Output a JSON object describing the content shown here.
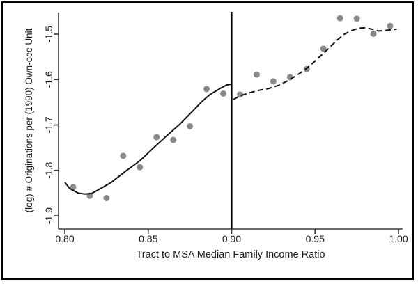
{
  "figure": {
    "background": "#ffffff",
    "border_color": "#000000"
  },
  "chart_data": {
    "type": "scatter",
    "title": "",
    "xlabel": "Tract to MSA Median Family Income Ratio",
    "ylabel": "(log) # Originations per (1990) Own-occ Unit",
    "xlim": [
      0.796,
      1.003
    ],
    "ylim": [
      -1.93,
      -1.45
    ],
    "x_ticks": [
      0.8,
      0.85,
      0.9,
      0.95,
      1.0
    ],
    "x_tick_labels": [
      "0.80",
      "0.85",
      "0.90",
      "0.95",
      "1.00"
    ],
    "y_ticks": [
      -1.5,
      -1.6,
      -1.7,
      -1.8,
      -1.9
    ],
    "y_tick_labels": [
      "-1.5",
      "-1.6",
      "-1.7",
      "-1.8",
      "-1.9"
    ],
    "grid": false,
    "legend": "none",
    "cutoff_x": 0.9,
    "colors": {
      "dot": "#8a8a8a",
      "fit_line": "#111111",
      "cutoff_line": "#000000",
      "axis": "#3a3a3a"
    },
    "series": [
      {
        "name": "binned-scatter",
        "type": "scatter",
        "color": "#8a8a8a",
        "points": [
          [
            0.805,
            -1.837
          ],
          [
            0.815,
            -1.856
          ],
          [
            0.825,
            -1.861
          ],
          [
            0.835,
            -1.768
          ],
          [
            0.845,
            -1.793
          ],
          [
            0.855,
            -1.727
          ],
          [
            0.865,
            -1.733
          ],
          [
            0.875,
            -1.703
          ],
          [
            0.885,
            -1.621
          ],
          [
            0.895,
            -1.631
          ],
          [
            0.905,
            -1.633
          ],
          [
            0.915,
            -1.589
          ],
          [
            0.925,
            -1.604
          ],
          [
            0.935,
            -1.595
          ],
          [
            0.945,
            -1.577
          ],
          [
            0.955,
            -1.532
          ],
          [
            0.965,
            -1.465
          ],
          [
            0.975,
            -1.466
          ],
          [
            0.985,
            -1.499
          ],
          [
            0.995,
            -1.482
          ]
        ]
      },
      {
        "name": "fit-left-of-cutoff",
        "type": "line",
        "style": "solid",
        "color": "#111111",
        "points": [
          [
            0.8,
            -1.826
          ],
          [
            0.803,
            -1.84
          ],
          [
            0.808,
            -1.85
          ],
          [
            0.812,
            -1.852
          ],
          [
            0.816,
            -1.851
          ],
          [
            0.821,
            -1.841
          ],
          [
            0.828,
            -1.826
          ],
          [
            0.836,
            -1.803
          ],
          [
            0.845,
            -1.779
          ],
          [
            0.853,
            -1.751
          ],
          [
            0.861,
            -1.724
          ],
          [
            0.869,
            -1.698
          ],
          [
            0.876,
            -1.672
          ],
          [
            0.882,
            -1.649
          ],
          [
            0.887,
            -1.633
          ],
          [
            0.893,
            -1.62
          ],
          [
            0.897,
            -1.612
          ],
          [
            0.9,
            -1.61
          ]
        ]
      },
      {
        "name": "fit-right-of-cutoff",
        "type": "line",
        "style": "dashed",
        "color": "#111111",
        "points": [
          [
            0.901,
            -1.644
          ],
          [
            0.905,
            -1.636
          ],
          [
            0.911,
            -1.629
          ],
          [
            0.916,
            -1.624
          ],
          [
            0.922,
            -1.62
          ],
          [
            0.928,
            -1.613
          ],
          [
            0.933,
            -1.604
          ],
          [
            0.938,
            -1.593
          ],
          [
            0.943,
            -1.581
          ],
          [
            0.948,
            -1.566
          ],
          [
            0.953,
            -1.549
          ],
          [
            0.958,
            -1.532
          ],
          [
            0.963,
            -1.514
          ],
          [
            0.967,
            -1.501
          ],
          [
            0.972,
            -1.492
          ],
          [
            0.976,
            -1.487
          ],
          [
            0.98,
            -1.486
          ],
          [
            0.984,
            -1.489
          ],
          [
            0.988,
            -1.493
          ],
          [
            0.992,
            -1.492
          ],
          [
            0.996,
            -1.49
          ],
          [
            0.999,
            -1.489
          ]
        ]
      }
    ]
  }
}
